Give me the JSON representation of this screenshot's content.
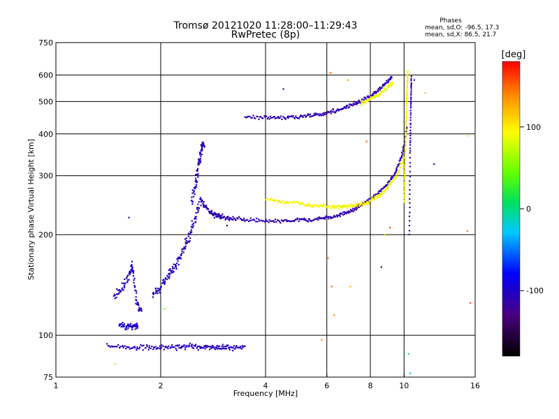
{
  "header": {
    "title_line1": "Tromsø 20121020 11:28:00–11:29:43",
    "title_line2": "RwPretec (8p)"
  },
  "stats": {
    "heading": "Phases",
    "o_line": "mean, sd,O: -96.5, 17.3",
    "x_line": "mean, sd,X:  86.5, 21.7"
  },
  "colorbar": {
    "unit_label": "[deg]",
    "ticks": [
      {
        "value": 100,
        "label": "100"
      },
      {
        "value": 0,
        "label": "0"
      },
      {
        "value": -100,
        "label": "-100"
      }
    ],
    "range": [
      -180,
      180
    ]
  },
  "chart_data": {
    "type": "scatter",
    "xlabel": "Frequency [MHz]",
    "ylabel": "Stationary phase Virtual Height [km]",
    "xscale": "log",
    "yscale": "log",
    "xlim": [
      1,
      16
    ],
    "ylim": [
      75,
      750
    ],
    "x_ticks": [
      {
        "value": 1,
        "label": "1"
      },
      {
        "value": 2,
        "label": "2"
      },
      {
        "value": 4,
        "label": "4"
      },
      {
        "value": 6,
        "label": "6"
      },
      {
        "value": 8,
        "label": "8"
      },
      {
        "value": 10,
        "label": "10"
      },
      {
        "value": 16,
        "label": "16"
      }
    ],
    "y_ticks": [
      {
        "value": 75,
        "label": "75"
      },
      {
        "value": 100,
        "label": "100"
      },
      {
        "value": 200,
        "label": "200"
      },
      {
        "value": 300,
        "label": "300"
      },
      {
        "value": 400,
        "label": "400"
      },
      {
        "value": 500,
        "label": "500"
      },
      {
        "value": 600,
        "label": "600"
      },
      {
        "value": 750,
        "label": "750"
      }
    ],
    "grid": true,
    "color_encoding": "phase_deg",
    "traces": [
      {
        "id": "e-layer-flat",
        "phase": -105,
        "spread": 0.025,
        "x": [
          1.4,
          1.6,
          1.8,
          2.0,
          2.2,
          2.4,
          2.6,
          2.8,
          3.0,
          3.2,
          3.5
        ],
        "y": [
          93,
          92,
          92,
          92,
          92,
          93,
          92,
          92,
          92,
          92,
          92
        ]
      },
      {
        "id": "es-lower",
        "phase": -100,
        "spread": 0.03,
        "x": [
          1.52,
          1.6,
          1.68,
          1.72
        ],
        "y": [
          108,
          106,
          106,
          107
        ]
      },
      {
        "id": "e-cusp-o",
        "phase": -105,
        "spread": 0.045,
        "x": [
          1.47,
          1.55,
          1.62,
          1.66,
          1.7,
          1.76
        ],
        "y": [
          128,
          138,
          150,
          162,
          125,
          118
        ]
      },
      {
        "id": "f1-rise",
        "phase": -105,
        "spread": 0.05,
        "x": [
          1.9,
          2.0,
          2.1,
          2.2,
          2.3,
          2.4,
          2.5,
          2.6
        ],
        "y": [
          132,
          140,
          150,
          160,
          175,
          195,
          220,
          255
        ]
      },
      {
        "id": "f1-spike",
        "phase": -100,
        "spread": 0.05,
        "x": [
          2.45,
          2.52,
          2.57,
          2.62,
          2.66
        ],
        "y": [
          250,
          290,
          330,
          360,
          375
        ]
      },
      {
        "id": "f1-decay",
        "phase": -110,
        "spread": 0.025,
        "x": [
          2.6,
          2.7,
          2.8,
          2.9,
          3.0,
          3.2,
          3.5
        ],
        "y": [
          255,
          240,
          232,
          228,
          226,
          224,
          222
        ]
      },
      {
        "id": "f2-o-trace",
        "phase": -110,
        "spread": 0.018,
        "x": [
          3.5,
          4.0,
          4.5,
          5.0,
          5.5,
          6.0,
          6.5,
          7.0,
          7.5,
          8.0,
          8.5,
          9.0,
          9.5,
          9.9,
          10.2
        ],
        "y": [
          221,
          220,
          220,
          221,
          222,
          225,
          229,
          235,
          244,
          255,
          268,
          285,
          310,
          350,
          420
        ]
      },
      {
        "id": "f2-x-trace",
        "phase": 95,
        "spread": 0.02,
        "x": [
          4.0,
          4.5,
          5.0,
          5.5,
          6.0,
          6.5,
          7.0,
          7.5,
          8.0,
          8.5,
          9.0,
          9.5,
          10.0
        ],
        "y": [
          255,
          250,
          247,
          245,
          243,
          242,
          243,
          246,
          252,
          262,
          278,
          300,
          340
        ]
      },
      {
        "id": "f2-second-hop",
        "phase": -110,
        "spread": 0.02,
        "x": [
          3.5,
          4.0,
          4.5,
          5.0,
          5.5,
          6.0,
          6.5,
          7.0,
          7.5,
          8.0,
          8.5,
          9.0,
          9.2
        ],
        "y": [
          450,
          448,
          448,
          450,
          455,
          462,
          472,
          487,
          502,
          520,
          545,
          575,
          595
        ]
      },
      {
        "id": "f2-second-hop-x",
        "phase": 90,
        "spread": 0.02,
        "x": [
          7.5,
          8.0,
          8.5,
          9.0,
          9.3
        ],
        "y": [
          495,
          510,
          528,
          555,
          570
        ]
      },
      {
        "id": "critical-vertical",
        "phase": 100,
        "spread": 0.008,
        "x": [
          10.0,
          10.05,
          10.1,
          10.15,
          10.2,
          10.25
        ],
        "y": [
          250,
          320,
          400,
          480,
          550,
          620
        ]
      },
      {
        "id": "critical-vertical-o",
        "phase": -105,
        "spread": 0.008,
        "x": [
          10.35,
          10.4,
          10.45,
          10.5
        ],
        "y": [
          200,
          350,
          480,
          600
        ]
      }
    ],
    "noise_points": [
      {
        "x": 1.62,
        "y": 225,
        "phase": -130
      },
      {
        "x": 2.05,
        "y": 120,
        "phase": 40
      },
      {
        "x": 1.48,
        "y": 82,
        "phase": 110
      },
      {
        "x": 4.5,
        "y": 545,
        "phase": -120
      },
      {
        "x": 6.15,
        "y": 610,
        "phase": 150
      },
      {
        "x": 6.2,
        "y": 140,
        "phase": 150
      },
      {
        "x": 6.05,
        "y": 170,
        "phase": 140
      },
      {
        "x": 6.3,
        "y": 115,
        "phase": 130
      },
      {
        "x": 7.0,
        "y": 140,
        "phase": 120
      },
      {
        "x": 7.8,
        "y": 380,
        "phase": 150
      },
      {
        "x": 8.6,
        "y": 160,
        "phase": -150
      },
      {
        "x": 8.8,
        "y": 200,
        "phase": 60
      },
      {
        "x": 9.1,
        "y": 210,
        "phase": 160
      },
      {
        "x": 10.3,
        "y": 88,
        "phase": -10
      },
      {
        "x": 10.4,
        "y": 77,
        "phase": -20
      },
      {
        "x": 11.5,
        "y": 530,
        "phase": 120
      },
      {
        "x": 12.2,
        "y": 325,
        "phase": -120
      },
      {
        "x": 15.2,
        "y": 205,
        "phase": 140
      },
      {
        "x": 15.5,
        "y": 125,
        "phase": 160
      },
      {
        "x": 15.2,
        "y": 395,
        "phase": 100
      },
      {
        "x": 3.1,
        "y": 213,
        "phase": -170
      },
      {
        "x": 6.9,
        "y": 580,
        "phase": 130
      },
      {
        "x": 5.8,
        "y": 97,
        "phase": 140
      },
      {
        "x": 10.7,
        "y": 580,
        "phase": -110
      }
    ]
  }
}
